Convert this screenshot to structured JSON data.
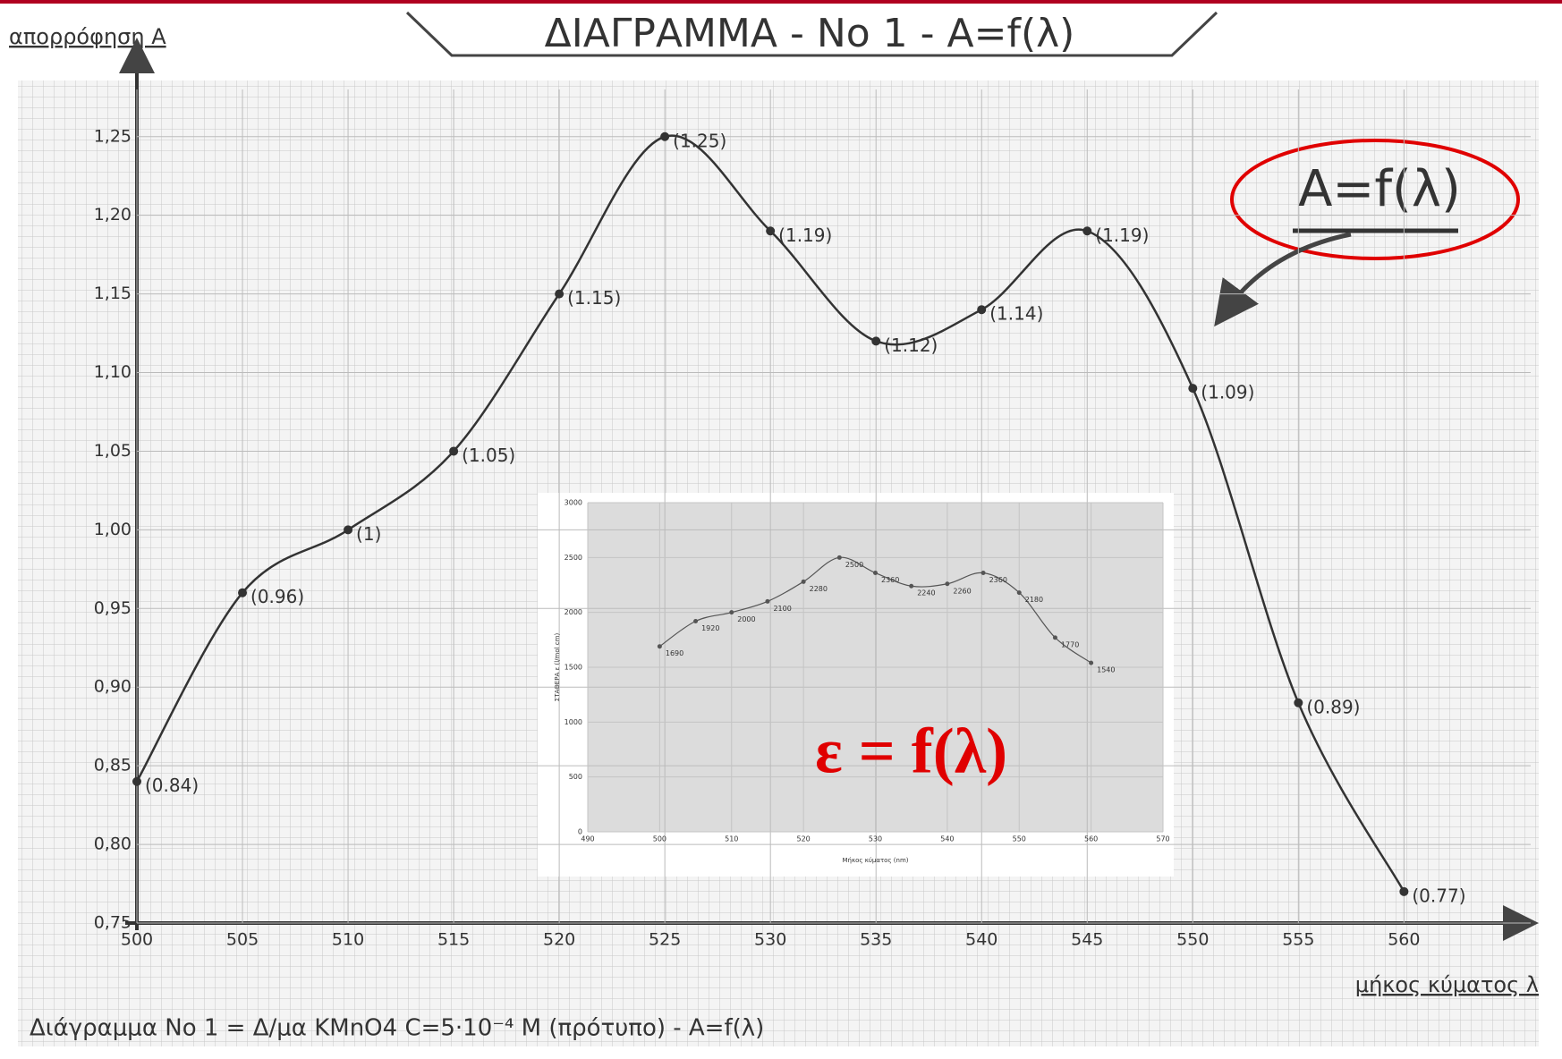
{
  "chart_data": [
    {
      "type": "line",
      "title": "ΔΙΑΓΡΑΜΜΑ - Νο 1 - Α=f(λ)",
      "y_label": "απορρόφηση Α",
      "x_label": "μήκος κύματος λ",
      "caption": "Διάγραμμα Νο 1 = Δ/μα KMnO4 C=5·10⁻⁴ M (πρότυπο) - Α=f(λ)",
      "annotation": "A=f(λ)",
      "x": [
        500,
        505,
        510,
        515,
        520,
        525,
        530,
        535,
        540,
        545,
        550,
        555,
        560
      ],
      "values": [
        0.84,
        0.96,
        1.0,
        1.05,
        1.15,
        1.25,
        1.19,
        1.12,
        1.14,
        1.19,
        1.09,
        0.89,
        0.77
      ],
      "value_labels": [
        "(0.84)",
        "(0.96)",
        "(1)",
        "(1.05)",
        "(1.15)",
        "(1.25)",
        "(1.19)",
        "(1.12)",
        "(1.14)",
        "(1.19)",
        "(1.09)",
        "(0.89)",
        "(0.77)"
      ],
      "color": "#333333",
      "xlim": [
        500,
        566
      ],
      "ylim": [
        0.75,
        1.28
      ],
      "xticks": [
        500,
        505,
        510,
        515,
        520,
        525,
        530,
        535,
        540,
        545,
        550,
        555,
        560
      ],
      "yticks": [
        {
          "value": 0.75,
          "label": "0,75"
        },
        {
          "value": 0.8,
          "label": "0,80"
        },
        {
          "value": 0.85,
          "label": "0,85"
        },
        {
          "value": 0.9,
          "label": "0,90"
        },
        {
          "value": 0.95,
          "label": "0,95"
        },
        {
          "value": 1.0,
          "label": "1,00"
        },
        {
          "value": 1.05,
          "label": "1,05"
        },
        {
          "value": 1.1,
          "label": "1,10"
        },
        {
          "value": 1.15,
          "label": "1,15"
        },
        {
          "value": 1.2,
          "label": "1,20"
        },
        {
          "value": 1.25,
          "label": "1,25"
        }
      ],
      "grid": true
    },
    {
      "type": "line",
      "title": "ε = f(λ)",
      "title_color": "#e00000",
      "y_label": "ΣΤΑΘΕΡΑ ε (l/mol cm)",
      "x_label": "Μήκος κύματος (nm)",
      "x": [
        500,
        505,
        510,
        515,
        520,
        525,
        530,
        535,
        540,
        545,
        550,
        555,
        560
      ],
      "values": [
        1690,
        1920,
        2000,
        2100,
        2280,
        2500,
        2360,
        2240,
        2260,
        2360,
        2180,
        1770,
        1540
      ],
      "color": "#555555",
      "xlim": [
        490,
        570
      ],
      "ylim": [
        0,
        3000
      ],
      "xticks": [
        490,
        500,
        510,
        520,
        530,
        540,
        550,
        560,
        570
      ],
      "yticks": [
        0,
        500,
        1000,
        1500,
        2000,
        2500,
        3000
      ],
      "grid": true
    }
  ]
}
